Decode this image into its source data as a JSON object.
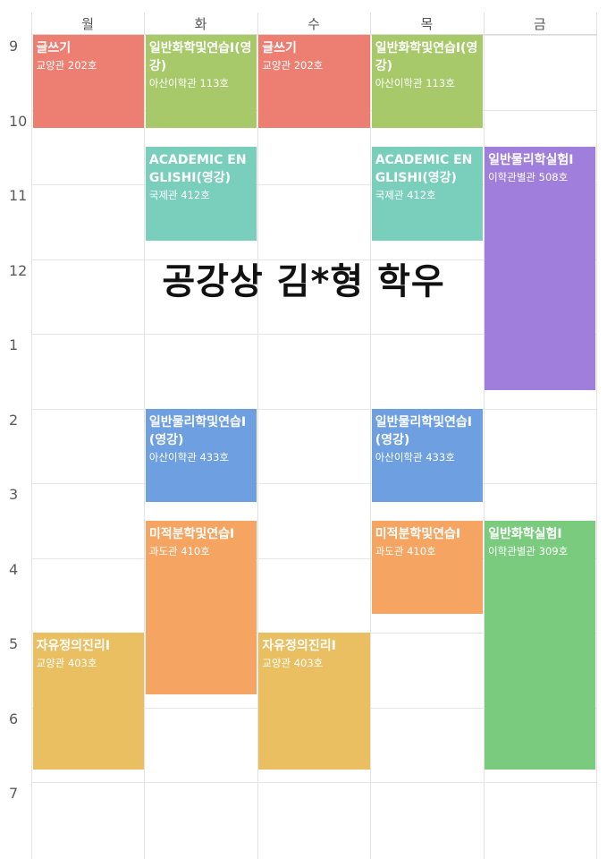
{
  "days": [
    "월",
    "화",
    "수",
    "목",
    "금"
  ],
  "hours": [
    "9",
    "10",
    "11",
    "12",
    "1",
    "2",
    "3",
    "4",
    "5",
    "6",
    "7"
  ],
  "watermark": "공강상 김*형 학우",
  "courses": [
    {
      "title": "글쓰기",
      "room": "교양관 202호",
      "day": 0,
      "start": 9,
      "end": 10.25,
      "color": "#ec7f72"
    },
    {
      "title": "일반화학및연습I(영강)",
      "room": "아산이학관 113호",
      "day": 1,
      "start": 9,
      "end": 10.25,
      "color": "#a7c96a"
    },
    {
      "title": "글쓰기",
      "room": "교양관 202호",
      "day": 2,
      "start": 9,
      "end": 10.25,
      "color": "#ec7f72"
    },
    {
      "title": "일반화학및연습I(영강)",
      "room": "아산이학관 113호",
      "day": 3,
      "start": 9,
      "end": 10.25,
      "color": "#a7c96a"
    },
    {
      "title": "ACADEMIC ENGLISHI(영강)",
      "room": "국제관 412호",
      "day": 1,
      "start": 10.5,
      "end": 11.75,
      "color": "#7acfbc"
    },
    {
      "title": "ACADEMIC ENGLISHI(영강)",
      "room": "국제관 412호",
      "day": 3,
      "start": 10.5,
      "end": 11.75,
      "color": "#7acfbc"
    },
    {
      "title": "일반물리학실험I",
      "room": "이학관별관 508호",
      "day": 4,
      "start": 10.5,
      "end": 13.75,
      "color": "#a07fdc"
    },
    {
      "title": "일반물리학및연습I(영강)",
      "room": "아산이학관 433호",
      "day": 1,
      "start": 14,
      "end": 15.25,
      "color": "#6e9fe0"
    },
    {
      "title": "일반물리학및연습I(영강)",
      "room": "아산이학관 433호",
      "day": 3,
      "start": 14,
      "end": 15.25,
      "color": "#6e9fe0"
    },
    {
      "title": "미적분학및연습I",
      "room": "과도관 410호",
      "day": 1,
      "start": 15.5,
      "end": 17.83,
      "color": "#f6a462"
    },
    {
      "title": "미적분학및연습I",
      "room": "과도관 410호",
      "day": 3,
      "start": 15.5,
      "end": 16.75,
      "color": "#f6a462"
    },
    {
      "title": "일반화학실험I",
      "room": "이학관별관 309호",
      "day": 4,
      "start": 15.5,
      "end": 18.83,
      "color": "#7acb7e"
    },
    {
      "title": "자유정의진리I",
      "room": "교양관 403호",
      "day": 0,
      "start": 17,
      "end": 18.83,
      "color": "#e9bf62"
    },
    {
      "title": "자유정의진리I",
      "room": "교양관 403호",
      "day": 2,
      "start": 17,
      "end": 18.83,
      "color": "#e9bf62"
    }
  ]
}
